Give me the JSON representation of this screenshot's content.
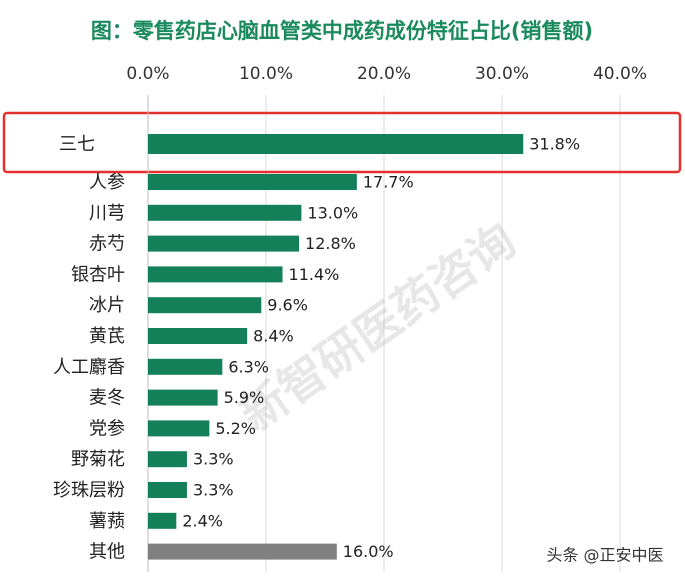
{
  "chart_data": {
    "type": "bar",
    "orientation": "horizontal",
    "title": "图：零售药店心脑血管类中成药成份特征占比(销售额)",
    "categories": [
      "三七",
      "人参",
      "川芎",
      "赤芍",
      "银杏叶",
      "冰片",
      "黄芪",
      "人工麝香",
      "麦冬",
      "党参",
      "野菊花",
      "珍珠层粉",
      "薯蓣",
      "其他"
    ],
    "values": [
      31.8,
      17.7,
      13.0,
      12.8,
      11.4,
      9.6,
      8.4,
      6.3,
      5.9,
      5.2,
      3.3,
      3.3,
      2.4,
      16.0
    ],
    "value_labels": [
      "31.8%",
      "17.7%",
      "13.0%",
      "12.8%",
      "11.4%",
      "9.6%",
      "8.4%",
      "6.3%",
      "5.9%",
      "5.2%",
      "3.3%",
      "3.3%",
      "2.4%",
      "16.0%"
    ],
    "colors": [
      "#14805a",
      "#14805a",
      "#14805a",
      "#14805a",
      "#14805a",
      "#14805a",
      "#14805a",
      "#14805a",
      "#14805a",
      "#14805a",
      "#14805a",
      "#14805a",
      "#14805a",
      "#808080"
    ],
    "xlim": [
      0,
      40
    ],
    "xticks": [
      {
        "value": 0,
        "label": "0.0%"
      },
      {
        "value": 10,
        "label": "10.0%"
      },
      {
        "value": 20,
        "label": "20.0%"
      },
      {
        "value": 30,
        "label": "30.0%"
      },
      {
        "value": 40,
        "label": "40.0%"
      }
    ],
    "grid": true,
    "watermark": "新智研医药咨询",
    "footer": "头条 @正安中医"
  }
}
